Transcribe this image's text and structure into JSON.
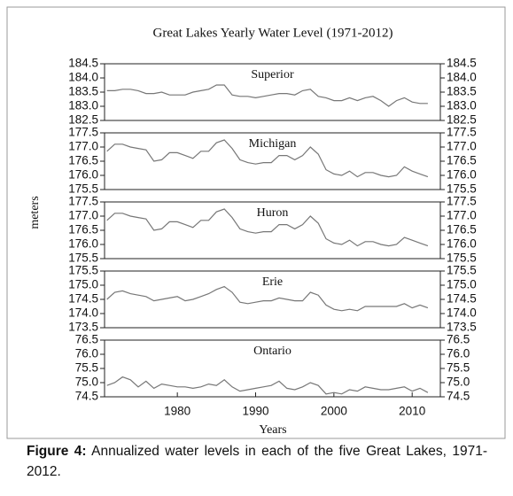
{
  "figure": {
    "title": "Great Lakes Yearly Water Level (1971-2012)",
    "ylabel": "meters",
    "xlabel": "Years",
    "caption_label": "Figure 4:",
    "caption_text": "Annualized water levels in each of the five Great Lakes, 1971-2012."
  },
  "chart_data": [
    {
      "type": "line",
      "title": "Superior",
      "color": "#777777",
      "ylim": [
        182.5,
        184.5
      ],
      "yticks": [
        184.5,
        {
          "value": 184,
          "label": "184.0"
        },
        183.5,
        {
          "value": 183,
          "label": "183.0"
        },
        182.5
      ],
      "xlim": [
        1970.7,
        2013.6
      ],
      "x": [
        1971,
        1972,
        1973,
        1974,
        1975,
        1976,
        1977,
        1978,
        1979,
        1980,
        1981,
        1982,
        1983,
        1984,
        1985,
        1986,
        1987,
        1988,
        1989,
        1990,
        1991,
        1992,
        1993,
        1994,
        1995,
        1996,
        1997,
        1998,
        1999,
        2000,
        2001,
        2002,
        2003,
        2004,
        2005,
        2006,
        2007,
        2008,
        2009,
        2010,
        2011,
        2012
      ],
      "values": [
        183.55,
        183.55,
        183.6,
        183.6,
        183.55,
        183.45,
        183.45,
        183.5,
        183.4,
        183.4,
        183.4,
        183.5,
        183.55,
        183.6,
        183.75,
        183.75,
        183.4,
        183.35,
        183.35,
        183.3,
        183.35,
        183.4,
        183.45,
        183.45,
        183.4,
        183.55,
        183.6,
        183.35,
        183.3,
        183.2,
        183.2,
        183.3,
        183.2,
        183.3,
        183.35,
        183.2,
        183.0,
        183.2,
        183.3,
        183.15,
        183.1,
        183.1
      ]
    },
    {
      "type": "line",
      "title": "Michigan",
      "color": "#777777",
      "ylim": [
        175.5,
        177.5
      ],
      "yticks": [
        177.5,
        {
          "value": 177,
          "label": "177.0"
        },
        176.5,
        {
          "value": 176,
          "label": "176.0"
        },
        175.5
      ],
      "xlim": [
        1970.7,
        2013.6
      ],
      "x": [
        1971,
        1972,
        1973,
        1974,
        1975,
        1976,
        1977,
        1978,
        1979,
        1980,
        1981,
        1982,
        1983,
        1984,
        1985,
        1986,
        1987,
        1988,
        1989,
        1990,
        1991,
        1992,
        1993,
        1994,
        1995,
        1996,
        1997,
        1998,
        1999,
        2000,
        2001,
        2002,
        2003,
        2004,
        2005,
        2006,
        2007,
        2008,
        2009,
        2010,
        2011,
        2012
      ],
      "values": [
        176.85,
        177.1,
        177.1,
        177.0,
        176.95,
        176.9,
        176.5,
        176.55,
        176.8,
        176.8,
        176.7,
        176.6,
        176.85,
        176.85,
        177.15,
        177.25,
        176.95,
        176.55,
        176.45,
        176.4,
        176.45,
        176.45,
        176.7,
        176.7,
        176.55,
        176.7,
        177.0,
        176.75,
        176.2,
        176.05,
        176.0,
        176.15,
        175.95,
        176.1,
        176.1,
        176.0,
        175.95,
        176.0,
        176.3,
        176.15,
        176.05,
        175.95
      ]
    },
    {
      "type": "line",
      "title": "Huron",
      "color": "#777777",
      "ylim": [
        175.5,
        177.5
      ],
      "yticks": [
        177.5,
        {
          "value": 177,
          "label": "177.0"
        },
        176.5,
        {
          "value": 176,
          "label": "176.0"
        },
        175.5
      ],
      "xlim": [
        1970.7,
        2013.6
      ],
      "x": [
        1971,
        1972,
        1973,
        1974,
        1975,
        1976,
        1977,
        1978,
        1979,
        1980,
        1981,
        1982,
        1983,
        1984,
        1985,
        1986,
        1987,
        1988,
        1989,
        1990,
        1991,
        1992,
        1993,
        1994,
        1995,
        1996,
        1997,
        1998,
        1999,
        2000,
        2001,
        2002,
        2003,
        2004,
        2005,
        2006,
        2007,
        2008,
        2009,
        2010,
        2011,
        2012
      ],
      "values": [
        176.85,
        177.1,
        177.1,
        177.0,
        176.95,
        176.9,
        176.5,
        176.55,
        176.8,
        176.8,
        176.7,
        176.6,
        176.85,
        176.85,
        177.15,
        177.25,
        176.95,
        176.55,
        176.45,
        176.4,
        176.45,
        176.45,
        176.7,
        176.7,
        176.55,
        176.7,
        177.0,
        176.75,
        176.2,
        176.05,
        176.0,
        176.15,
        175.95,
        176.1,
        176.1,
        176.0,
        175.95,
        176.0,
        176.25,
        176.15,
        176.05,
        175.95
      ]
    },
    {
      "type": "line",
      "title": "Erie",
      "color": "#777777",
      "ylim": [
        173.5,
        175.5
      ],
      "yticks": [
        175.5,
        {
          "value": 175,
          "label": "175.0"
        },
        174.5,
        {
          "value": 174,
          "label": "174.0"
        },
        173.5
      ],
      "xlim": [
        1970.7,
        2013.6
      ],
      "x": [
        1971,
        1972,
        1973,
        1974,
        1975,
        1976,
        1977,
        1978,
        1979,
        1980,
        1981,
        1982,
        1983,
        1984,
        1985,
        1986,
        1987,
        1988,
        1989,
        1990,
        1991,
        1992,
        1993,
        1994,
        1995,
        1996,
        1997,
        1998,
        1999,
        2000,
        2001,
        2002,
        2003,
        2004,
        2005,
        2006,
        2007,
        2008,
        2009,
        2010,
        2011,
        2012
      ],
      "values": [
        174.5,
        174.75,
        174.8,
        174.7,
        174.65,
        174.6,
        174.45,
        174.5,
        174.55,
        174.6,
        174.45,
        174.5,
        174.6,
        174.7,
        174.85,
        174.95,
        174.75,
        174.4,
        174.35,
        174.4,
        174.45,
        174.45,
        174.55,
        174.5,
        174.45,
        174.45,
        174.75,
        174.65,
        174.3,
        174.15,
        174.1,
        174.15,
        174.1,
        174.25,
        174.25,
        174.25,
        174.25,
        174.25,
        174.35,
        174.2,
        174.3,
        174.2
      ]
    },
    {
      "type": "line",
      "title": "Ontario",
      "color": "#777777",
      "ylim": [
        74.5,
        76.5
      ],
      "yticks": [
        76.5,
        {
          "value": 76,
          "label": "76.0"
        },
        75.5,
        {
          "value": 75,
          "label": "75.0"
        },
        74.5
      ],
      "xlim": [
        1970.7,
        2013.6
      ],
      "xticks": [
        1980,
        1990,
        2000,
        2010
      ],
      "x": [
        1971,
        1972,
        1973,
        1974,
        1975,
        1976,
        1977,
        1978,
        1979,
        1980,
        1981,
        1982,
        1983,
        1984,
        1985,
        1986,
        1987,
        1988,
        1989,
        1990,
        1991,
        1992,
        1993,
        1994,
        1995,
        1996,
        1997,
        1998,
        1999,
        2000,
        2001,
        2002,
        2003,
        2004,
        2005,
        2006,
        2007,
        2008,
        2009,
        2010,
        2011,
        2012
      ],
      "values": [
        74.9,
        75.0,
        75.2,
        75.1,
        74.85,
        75.05,
        74.8,
        74.95,
        74.9,
        74.85,
        74.85,
        74.8,
        74.85,
        74.95,
        74.9,
        75.1,
        74.85,
        74.7,
        74.75,
        74.8,
        74.85,
        74.9,
        75.05,
        74.8,
        74.75,
        74.85,
        75.0,
        74.9,
        74.6,
        74.65,
        74.6,
        74.75,
        74.7,
        74.85,
        74.8,
        74.75,
        74.75,
        74.8,
        74.85,
        74.7,
        74.8,
        74.65
      ]
    }
  ]
}
